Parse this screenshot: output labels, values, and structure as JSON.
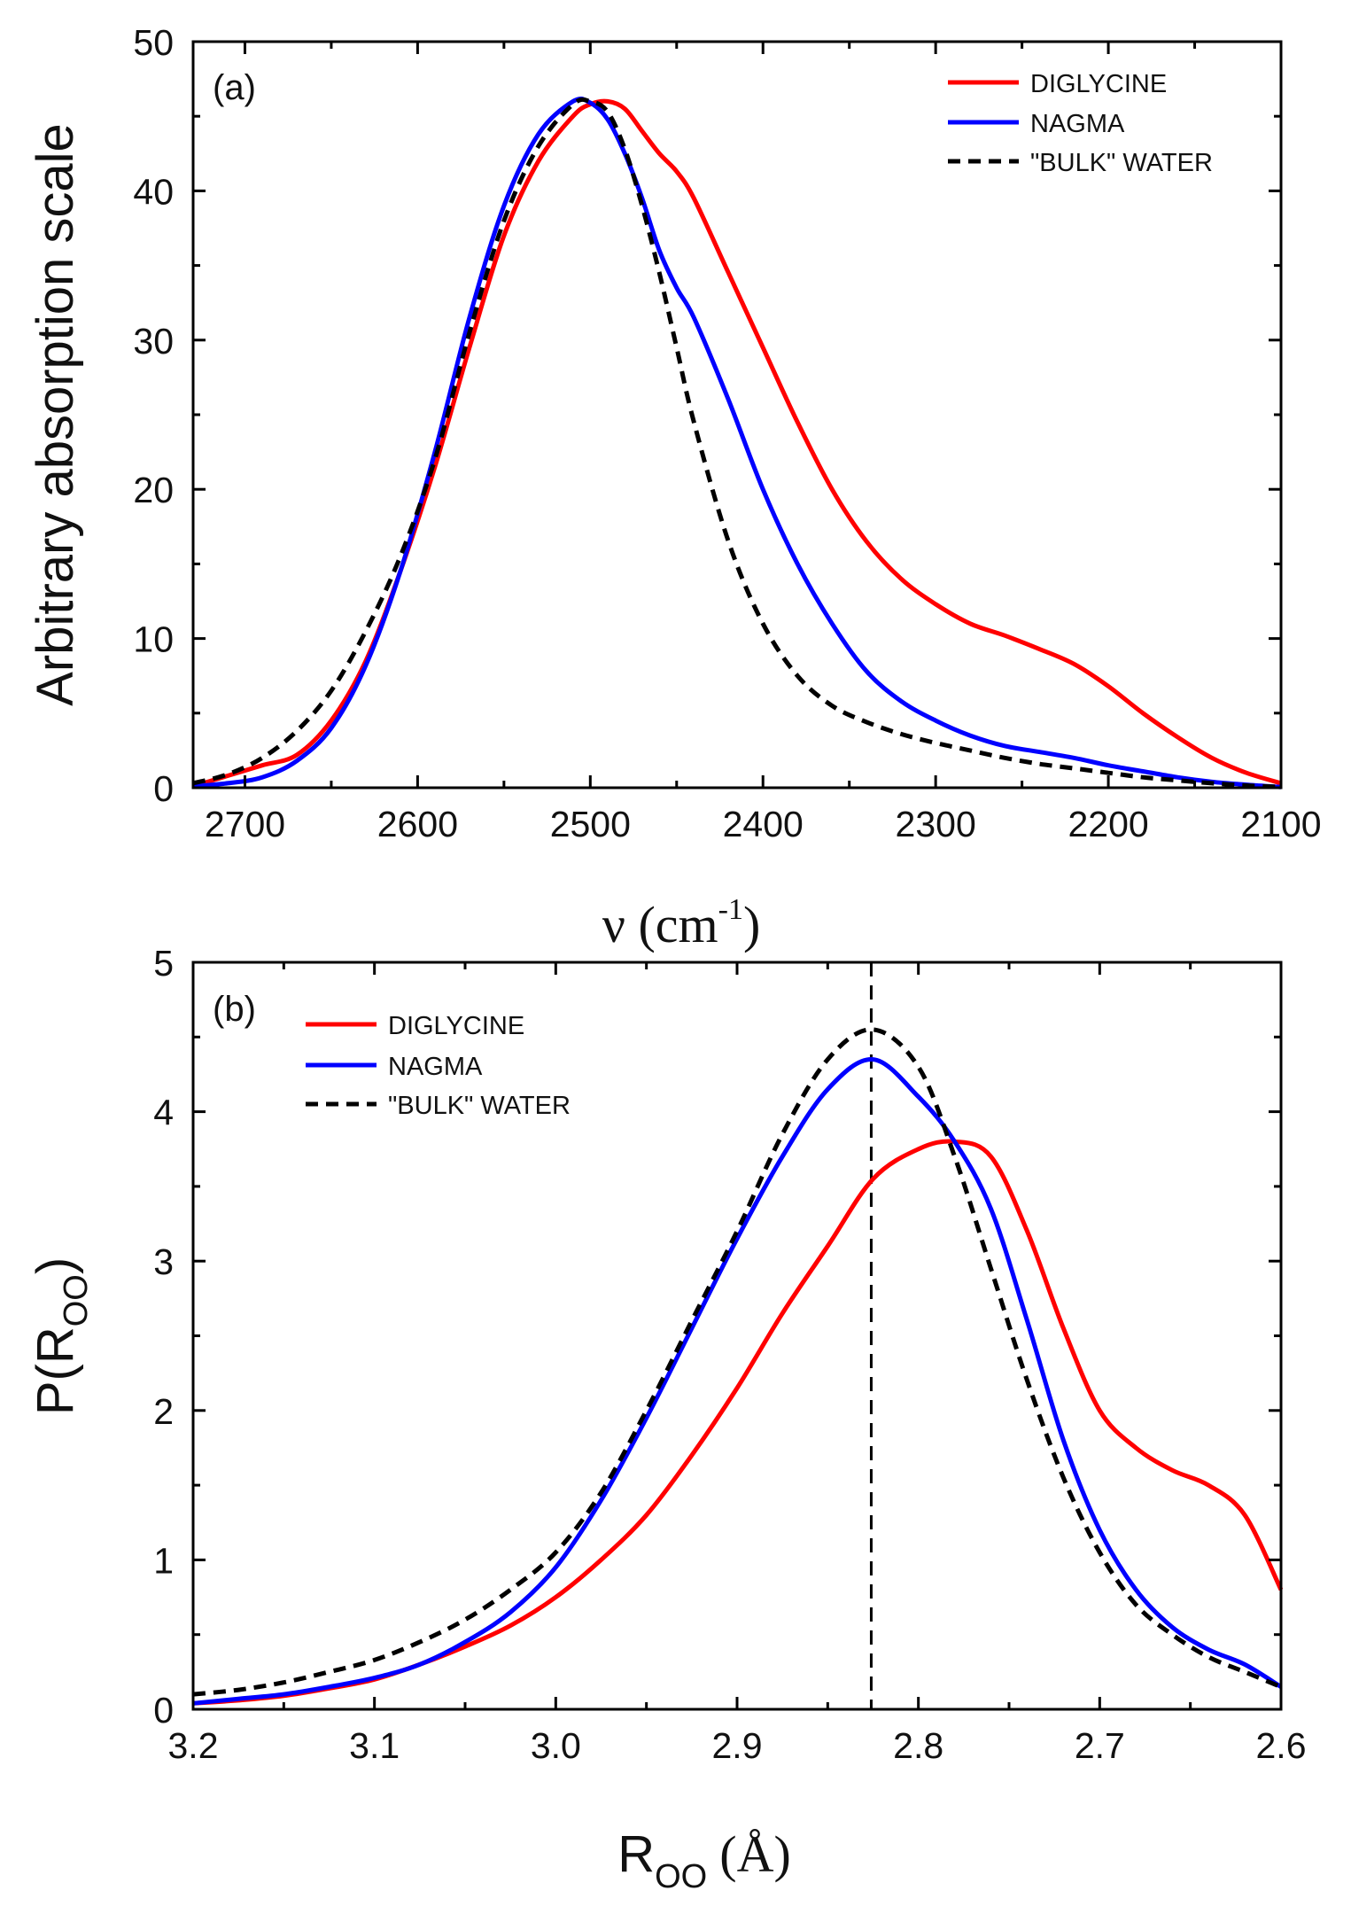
{
  "chart_data": [
    {
      "type": "line",
      "panel_label": "(a)",
      "xlabel_symbol": "ν (cm",
      "xlabel_exponent": "-1",
      "xlabel_close": ")",
      "ylabel": "Arbitrary absorption scale",
      "xlim": [
        2730,
        2100
      ],
      "ylim": [
        0,
        50
      ],
      "xticks": [
        2700,
        2600,
        2500,
        2400,
        2300,
        2200,
        2100
      ],
      "xtick_labels": [
        "2700",
        "2600",
        "2500",
        "2400",
        "2300",
        "2200",
        "2100"
      ],
      "yticks": [
        0,
        10,
        20,
        30,
        40,
        50
      ],
      "ytick_labels": [
        "0",
        "10",
        "20",
        "30",
        "40",
        "50"
      ],
      "legend_position": "top-right",
      "series": [
        {
          "name": "DIGLYCINE",
          "color": "#ff0000",
          "dash": "solid",
          "x": [
            2730,
            2710,
            2690,
            2670,
            2650,
            2630,
            2610,
            2590,
            2570,
            2550,
            2530,
            2510,
            2500,
            2490,
            2480,
            2470,
            2460,
            2450,
            2440,
            2420,
            2400,
            2380,
            2360,
            2340,
            2320,
            2300,
            2280,
            2260,
            2240,
            2220,
            2200,
            2180,
            2160,
            2140,
            2120,
            2100
          ],
          "y": [
            0.1,
            0.8,
            1.5,
            2.2,
            4.5,
            8.5,
            14.5,
            21.5,
            29.5,
            37.0,
            42.0,
            45.0,
            45.8,
            46.0,
            45.5,
            44.0,
            42.5,
            41.3,
            39.5,
            34.5,
            29.5,
            24.5,
            20.0,
            16.5,
            14.0,
            12.3,
            11.0,
            10.2,
            9.3,
            8.3,
            6.8,
            5.0,
            3.4,
            2.0,
            1.0,
            0.3
          ]
        },
        {
          "name": "NAGMA",
          "color": "#0000ff",
          "dash": "solid",
          "x": [
            2730,
            2710,
            2690,
            2670,
            2650,
            2630,
            2610,
            2590,
            2570,
            2550,
            2530,
            2510,
            2500,
            2490,
            2480,
            2470,
            2460,
            2450,
            2440,
            2420,
            2400,
            2380,
            2360,
            2340,
            2320,
            2300,
            2280,
            2260,
            2240,
            2220,
            2200,
            2180,
            2160,
            2140,
            2120,
            2100
          ],
          "y": [
            0.1,
            0.3,
            0.7,
            1.8,
            4.0,
            8.2,
            14.5,
            22.5,
            31.5,
            39.0,
            43.8,
            46.0,
            45.9,
            44.8,
            42.5,
            39.5,
            36.0,
            33.5,
            31.5,
            26.0,
            20.0,
            15.0,
            11.0,
            7.8,
            5.8,
            4.5,
            3.5,
            2.8,
            2.4,
            2.0,
            1.5,
            1.1,
            0.7,
            0.4,
            0.2,
            0.05
          ]
        },
        {
          "name": "\"BULK\" WATER",
          "color": "#000000",
          "dash": "dashed",
          "x": [
            2730,
            2710,
            2690,
            2670,
            2650,
            2630,
            2610,
            2590,
            2570,
            2550,
            2530,
            2510,
            2500,
            2490,
            2480,
            2470,
            2460,
            2450,
            2440,
            2420,
            2400,
            2380,
            2360,
            2340,
            2320,
            2300,
            2280,
            2260,
            2240,
            2220,
            2200,
            2180,
            2160,
            2140,
            2120,
            2100
          ],
          "y": [
            0.3,
            0.9,
            2.0,
            3.8,
            6.5,
            10.5,
            15.5,
            22.0,
            30.5,
            38.0,
            43.0,
            45.8,
            46.0,
            45.3,
            42.8,
            39.0,
            34.5,
            29.5,
            24.5,
            16.5,
            11.0,
            7.5,
            5.5,
            4.4,
            3.6,
            3.0,
            2.5,
            2.0,
            1.6,
            1.3,
            1.0,
            0.7,
            0.5,
            0.3,
            0.15,
            0.05
          ]
        }
      ]
    },
    {
      "type": "line",
      "panel_label": "(b)",
      "xlabel_main": "R",
      "xlabel_sub": "OO",
      "xlabel_unit": "(Å)",
      "ylabel_main": "P(R",
      "ylabel_sub": "OO",
      "ylabel_close": ")",
      "xlim": [
        3.2,
        2.6
      ],
      "ylim": [
        0,
        5
      ],
      "xticks": [
        3.2,
        3.1,
        3.0,
        2.9,
        2.8,
        2.7,
        2.6
      ],
      "xtick_labels": [
        "3.2",
        "3.1",
        "3.0",
        "2.9",
        "2.8",
        "2.7",
        "2.6"
      ],
      "yticks": [
        0,
        1,
        2,
        3,
        4,
        5
      ],
      "ytick_labels": [
        "0",
        "1",
        "2",
        "3",
        "4",
        "5"
      ],
      "reference_line_x": 2.826,
      "legend_position": "top-left",
      "series": [
        {
          "name": "DIGLYCINE",
          "color": "#ff0000",
          "dash": "solid",
          "x": [
            3.2,
            3.175,
            3.15,
            3.125,
            3.1,
            3.075,
            3.05,
            3.025,
            3.0,
            2.975,
            2.95,
            2.925,
            2.9,
            2.875,
            2.85,
            2.825,
            2.8,
            2.78,
            2.76,
            2.74,
            2.72,
            2.7,
            2.68,
            2.66,
            2.64,
            2.62,
            2.6
          ],
          "y": [
            0.04,
            0.06,
            0.09,
            0.14,
            0.2,
            0.3,
            0.42,
            0.56,
            0.75,
            1.0,
            1.3,
            1.7,
            2.15,
            2.65,
            3.1,
            3.55,
            3.75,
            3.8,
            3.7,
            3.2,
            2.55,
            2.0,
            1.75,
            1.6,
            1.5,
            1.3,
            0.8
          ]
        },
        {
          "name": "NAGMA",
          "color": "#0000ff",
          "dash": "solid",
          "x": [
            3.2,
            3.175,
            3.15,
            3.125,
            3.1,
            3.075,
            3.05,
            3.025,
            3.0,
            2.975,
            2.95,
            2.925,
            2.9,
            2.875,
            2.85,
            2.825,
            2.8,
            2.78,
            2.76,
            2.74,
            2.72,
            2.7,
            2.68,
            2.66,
            2.64,
            2.62,
            2.6
          ],
          "y": [
            0.04,
            0.07,
            0.1,
            0.15,
            0.21,
            0.3,
            0.45,
            0.65,
            0.95,
            1.4,
            1.95,
            2.55,
            3.15,
            3.7,
            4.15,
            4.35,
            4.1,
            3.8,
            3.35,
            2.6,
            1.8,
            1.2,
            0.8,
            0.55,
            0.4,
            0.3,
            0.15
          ]
        },
        {
          "name": "\"BULK\" WATER",
          "color": "#000000",
          "dash": "dashed",
          "x": [
            3.2,
            3.175,
            3.15,
            3.125,
            3.1,
            3.075,
            3.05,
            3.025,
            3.0,
            2.975,
            2.95,
            2.925,
            2.9,
            2.875,
            2.85,
            2.825,
            2.8,
            2.78,
            2.76,
            2.74,
            2.72,
            2.7,
            2.68,
            2.66,
            2.64,
            2.62,
            2.6
          ],
          "y": [
            0.1,
            0.13,
            0.18,
            0.25,
            0.33,
            0.45,
            0.6,
            0.8,
            1.05,
            1.45,
            2.0,
            2.6,
            3.2,
            3.85,
            4.35,
            4.55,
            4.3,
            3.7,
            2.95,
            2.2,
            1.55,
            1.05,
            0.7,
            0.5,
            0.35,
            0.25,
            0.15
          ]
        }
      ]
    }
  ]
}
